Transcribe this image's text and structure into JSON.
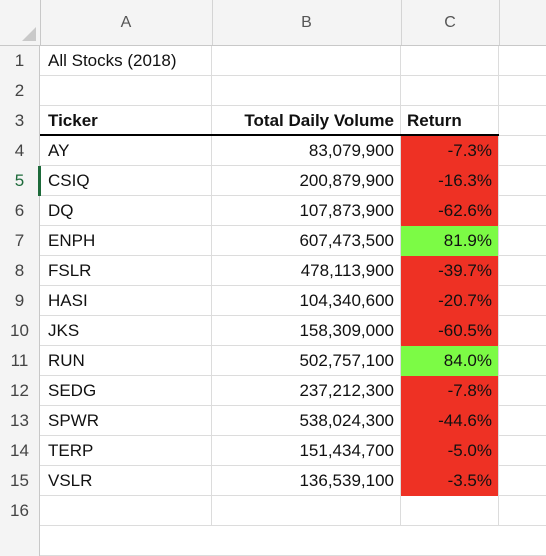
{
  "columns": [
    "A",
    "B",
    "C"
  ],
  "title_cell": "All Stocks (2018)",
  "headers": {
    "ticker": "Ticker",
    "volume": "Total Daily Volume",
    "return": "Return"
  },
  "rows": [
    {
      "num": "1"
    },
    {
      "num": "2"
    },
    {
      "num": "3"
    },
    {
      "num": "4",
      "ticker": "AY",
      "volume": "83,079,900",
      "ret": "-7.3%",
      "status": "negative"
    },
    {
      "num": "5",
      "ticker": "CSIQ",
      "volume": "200,879,900",
      "ret": "-16.3%",
      "status": "negative"
    },
    {
      "num": "6",
      "ticker": "DQ",
      "volume": "107,873,900",
      "ret": "-62.6%",
      "status": "negative"
    },
    {
      "num": "7",
      "ticker": "ENPH",
      "volume": "607,473,500",
      "ret": "81.9%",
      "status": "positive"
    },
    {
      "num": "8",
      "ticker": "FSLR",
      "volume": "478,113,900",
      "ret": "-39.7%",
      "status": "negative"
    },
    {
      "num": "9",
      "ticker": "HASI",
      "volume": "104,340,600",
      "ret": "-20.7%",
      "status": "negative"
    },
    {
      "num": "10",
      "ticker": "JKS",
      "volume": "158,309,000",
      "ret": "-60.5%",
      "status": "negative"
    },
    {
      "num": "11",
      "ticker": "RUN",
      "volume": "502,757,100",
      "ret": "84.0%",
      "status": "positive"
    },
    {
      "num": "12",
      "ticker": "SEDG",
      "volume": "237,212,300",
      "ret": "-7.8%",
      "status": "negative"
    },
    {
      "num": "13",
      "ticker": "SPWR",
      "volume": "538,024,300",
      "ret": "-44.6%",
      "status": "negative"
    },
    {
      "num": "14",
      "ticker": "TERP",
      "volume": "151,434,700",
      "ret": "-5.0%",
      "status": "negative"
    },
    {
      "num": "15",
      "ticker": "VSLR",
      "volume": "136,539,100",
      "ret": "-3.5%",
      "status": "negative"
    },
    {
      "num": "16"
    }
  ],
  "colors": {
    "negative": "#ee3124",
    "positive": "#7cfb45",
    "selected_row_header": "#1d6a3a"
  },
  "selected_row": "5"
}
